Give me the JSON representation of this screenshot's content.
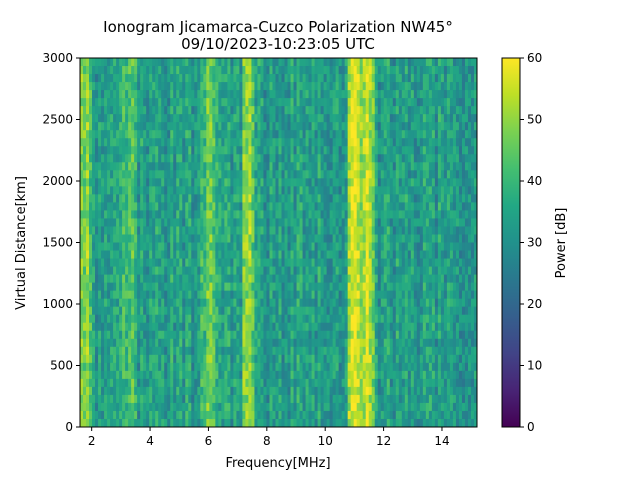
{
  "chart_data": {
    "type": "heatmap",
    "title": "Ionogram Jicamarca-Cuzco Polarization NW45°",
    "subtitle": "09/10/2023-10:23:05 UTC",
    "xlabel": "Frequency[MHz]",
    "ylabel": "Virtual Distance[km]",
    "xlim": [
      1.6,
      15.2
    ],
    "ylim": [
      0,
      3000
    ],
    "xticks": [
      2,
      4,
      6,
      8,
      10,
      12,
      14
    ],
    "yticks": [
      0,
      500,
      1000,
      1500,
      2000,
      2500,
      3000
    ],
    "colorbar": {
      "label": "Power [dB]",
      "range": [
        0,
        60
      ],
      "ticks": [
        0,
        10,
        20,
        30,
        40,
        50,
        60
      ],
      "colormap": "viridis"
    },
    "bands": [
      {
        "freq_start": 1.6,
        "freq_end": 1.9,
        "level_db": 50
      },
      {
        "freq_start": 3.2,
        "freq_end": 3.4,
        "level_db": 46
      },
      {
        "freq_start": 5.9,
        "freq_end": 6.2,
        "level_db": 48
      },
      {
        "freq_start": 7.3,
        "freq_end": 7.4,
        "level_db": 52
      },
      {
        "freq_start": 10.9,
        "freq_end": 11.2,
        "level_db": 60
      },
      {
        "freq_start": 11.3,
        "freq_end": 11.5,
        "level_db": 58
      }
    ]
  }
}
